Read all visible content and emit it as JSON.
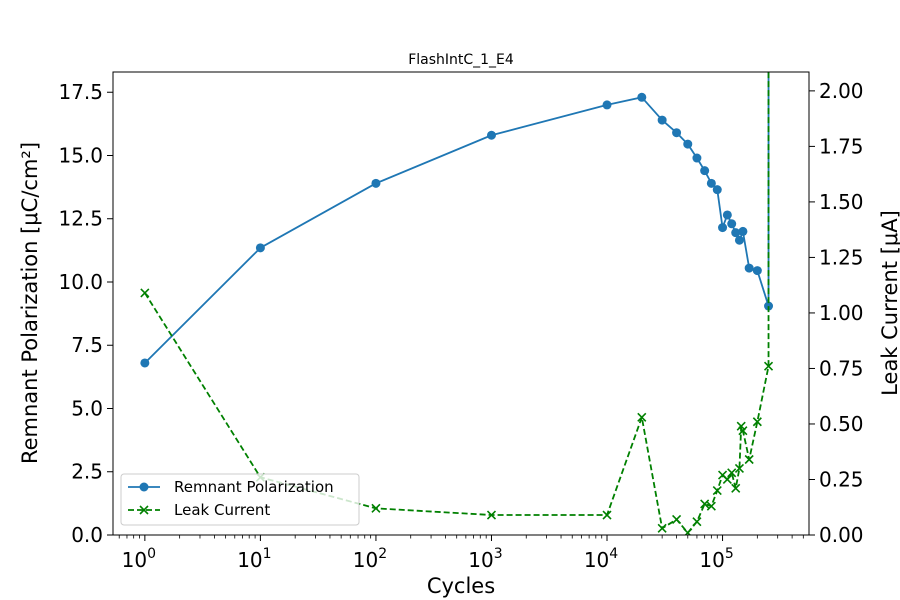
{
  "chart_data": {
    "type": "line",
    "title": "FlashIntC_1_E4",
    "xlabel": "Cycles",
    "ylabel": "Remnant Polarization [μC/cm²]",
    "y2label": "Leak Current [μA]",
    "xscale": "log",
    "xlim": [
      0.53,
      560000
    ],
    "ylim": [
      0,
      18.3
    ],
    "y2lim": [
      0,
      2.085
    ],
    "x_ticks": [
      {
        "value": 1,
        "base": "10",
        "exp": "0"
      },
      {
        "value": 10,
        "base": "10",
        "exp": "1"
      },
      {
        "value": 100,
        "base": "10",
        "exp": "2"
      },
      {
        "value": 1000,
        "base": "10",
        "exp": "3"
      },
      {
        "value": 10000,
        "base": "10",
        "exp": "4"
      },
      {
        "value": 100000,
        "base": "10",
        "exp": "5"
      }
    ],
    "y_ticks": [
      "0.0",
      "2.5",
      "5.0",
      "7.5",
      "10.0",
      "12.5",
      "15.0",
      "17.5"
    ],
    "y2_ticks": [
      "0.00",
      "0.25",
      "0.50",
      "0.75",
      "1.00",
      "1.25",
      "1.50",
      "1.75",
      "2.00"
    ],
    "grid": false,
    "legend_position": "lower-left",
    "series": [
      {
        "name": "Remnant Polarization",
        "axis": "left",
        "color": "#1f77b4",
        "marker": "circle",
        "linestyle": "solid",
        "points": [
          [
            1,
            6.8
          ],
          [
            10,
            11.35
          ],
          [
            100,
            13.9
          ],
          [
            1000,
            15.8
          ],
          [
            10000,
            17.0
          ],
          [
            20000,
            17.3
          ],
          [
            30000,
            16.4
          ],
          [
            40000,
            15.9
          ],
          [
            50000,
            15.45
          ],
          [
            60000,
            14.9
          ],
          [
            70000,
            14.4
          ],
          [
            80000,
            13.9
          ],
          [
            90000,
            13.65
          ],
          [
            100000,
            12.15
          ],
          [
            110000,
            12.65
          ],
          [
            120000,
            12.3
          ],
          [
            130000,
            11.95
          ],
          [
            140000,
            11.65
          ],
          [
            150000,
            12.0
          ],
          [
            170000,
            10.55
          ],
          [
            200000,
            10.45
          ],
          [
            250000,
            9.05
          ],
          [
            250000,
            18.3
          ]
        ]
      },
      {
        "name": "Leak Current",
        "axis": "right",
        "color": "#008000",
        "marker": "x",
        "linestyle": "dashed",
        "points": [
          [
            1,
            1.09
          ],
          [
            10,
            0.26
          ],
          [
            100,
            0.12
          ],
          [
            1000,
            0.09
          ],
          [
            10000,
            0.09
          ],
          [
            20000,
            0.53
          ],
          [
            30000,
            0.03
          ],
          [
            40000,
            0.07
          ],
          [
            50000,
            0.01
          ],
          [
            60000,
            0.06
          ],
          [
            70000,
            0.14
          ],
          [
            80000,
            0.13
          ],
          [
            90000,
            0.2
          ],
          [
            100000,
            0.27
          ],
          [
            110000,
            0.25
          ],
          [
            120000,
            0.28
          ],
          [
            130000,
            0.21
          ],
          [
            140000,
            0.3
          ],
          [
            145000,
            0.49
          ],
          [
            150000,
            0.47
          ],
          [
            170000,
            0.34
          ],
          [
            200000,
            0.51
          ],
          [
            250000,
            0.76
          ],
          [
            250000,
            2.085
          ]
        ]
      }
    ]
  }
}
